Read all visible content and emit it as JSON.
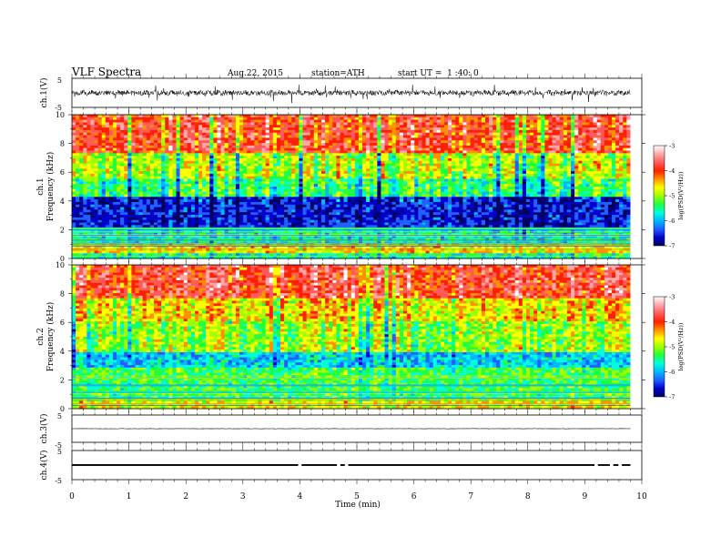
{
  "header": {
    "title": "VLF Spectra",
    "date": "Aug.22, 2015",
    "station": "station=ATH",
    "start": "start UT =  1 :40: 0"
  },
  "colors": {
    "spectrum_scale": [
      "#000060",
      "#0000cc",
      "#2060ff",
      "#00b8ff",
      "#00ffd8",
      "#20ff40",
      "#a0ff00",
      "#ffff00",
      "#ff9000",
      "#ff2000",
      "#ff5a5a",
      "#ffa8a8",
      "#ffffff"
    ]
  },
  "chart_data": [
    {
      "type": "line",
      "panel": "ch1",
      "ylabel": "ch.1(V)",
      "yticks": [
        "5",
        "-5"
      ],
      "ylim": [
        -5,
        5
      ],
      "x_range_min": [
        0,
        9.8
      ],
      "series": [
        {
          "amplitude_approx": 1.2,
          "mean": 0
        }
      ]
    },
    {
      "type": "heatmap",
      "panel": "ch1-spectrogram",
      "ylabel": "ch.1 Frequency (kHz)",
      "ylabel_lines": [
        "ch.1",
        "Frequency (kHz)"
      ],
      "yticks": [
        "0",
        "2",
        "4",
        "6",
        "8",
        "10"
      ],
      "ylim_khz": [
        0,
        10
      ],
      "x_range_min": [
        0,
        9.8
      ],
      "colorbar": {
        "label": "log(PSD(V²/Hz))",
        "ticks": [
          "-3",
          "-4",
          "-5",
          "-6",
          "-7"
        ],
        "range": [
          -7,
          -3
        ]
      },
      "levels_by_frequency": [
        {
          "khz": [
            0,
            0.4
          ],
          "log_psd": -5.6
        },
        {
          "khz": [
            0.4,
            1.0
          ],
          "log_psd": -4.6
        },
        {
          "khz": [
            1.0,
            2.1
          ],
          "log_psd": -5.7
        },
        {
          "khz": [
            2.1,
            4.2
          ],
          "log_psd": -6.6
        },
        {
          "khz": [
            4.2,
            5.5
          ],
          "log_psd": -5.4
        },
        {
          "khz": [
            5.5,
            7.3
          ],
          "log_psd": -4.9
        },
        {
          "khz": [
            7.3,
            10
          ],
          "log_psd": -3.9
        }
      ]
    },
    {
      "type": "heatmap",
      "panel": "ch2-spectrogram",
      "ylabel": "ch.2 Frequency (kHz)",
      "ylabel_lines": [
        "ch.2",
        "Frequency (kHz)"
      ],
      "yticks": [
        "0",
        "2",
        "4",
        "6",
        "8",
        "10"
      ],
      "ylim_khz": [
        0,
        10
      ],
      "x_range_min": [
        0,
        9.8
      ],
      "colorbar": {
        "label": "log(PSD(V²/Hz))",
        "ticks": [
          "-3",
          "-4",
          "-5",
          "-6",
          "-7"
        ],
        "range": [
          -7,
          -3
        ]
      },
      "levels_by_frequency": [
        {
          "khz": [
            0,
            0.5
          ],
          "log_psd": -4.7
        },
        {
          "khz": [
            0.5,
            2.8
          ],
          "log_psd": -5.3
        },
        {
          "khz": [
            2.8,
            4.0
          ],
          "log_psd": -5.9
        },
        {
          "khz": [
            4.0,
            6.0
          ],
          "log_psd": -5.0
        },
        {
          "khz": [
            6.0,
            7.6
          ],
          "log_psd": -4.6
        },
        {
          "khz": [
            7.6,
            10
          ],
          "log_psd": -3.8
        }
      ]
    },
    {
      "type": "line",
      "panel": "ch3",
      "ylabel": "ch.3(V)",
      "yticks": [
        "5",
        "-5"
      ],
      "ylim": [
        -5,
        5
      ],
      "x_range_min": [
        0,
        9.8
      ],
      "series": [
        {
          "mean": 0,
          "amplitude_approx": 0.05
        }
      ]
    },
    {
      "type": "line",
      "panel": "ch4",
      "ylabel": "ch.4(V)",
      "yticks": [
        "5",
        "-5"
      ],
      "ylim": [
        -5,
        5
      ],
      "x_range_min": [
        0,
        9.8
      ],
      "series": [
        {
          "mean": 0,
          "band": [
            -0.3,
            0.3
          ],
          "gaps_min": [
            4.0,
            4.68,
            4.82,
            9.2,
            9.47,
            9.62
          ]
        }
      ]
    }
  ],
  "xaxis": {
    "label": "Time (min)",
    "ticks": [
      "0",
      "1",
      "2",
      "3",
      "4",
      "5",
      "6",
      "7",
      "8",
      "9",
      "10"
    ],
    "xlim": [
      0,
      10
    ]
  }
}
